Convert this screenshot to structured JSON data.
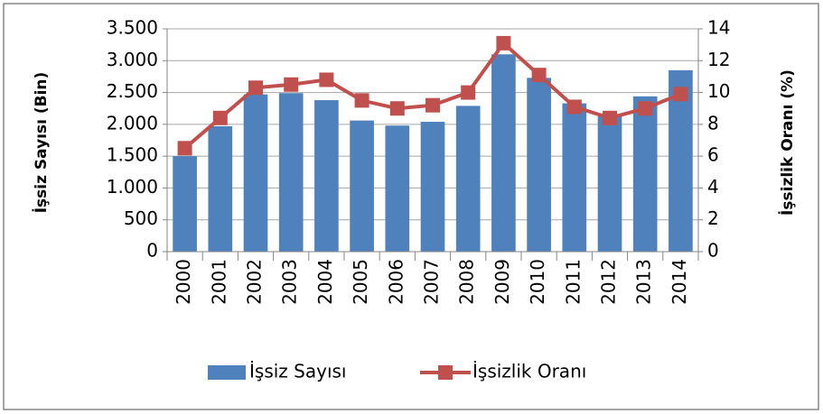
{
  "chart_data": {
    "type": "bar_line",
    "categories": [
      "2000",
      "2001",
      "2002",
      "2003",
      "2004",
      "2005",
      "2006",
      "2007",
      "2008",
      "2009",
      "2010",
      "2011",
      "2012",
      "2013",
      "2014"
    ],
    "series": [
      {
        "name": "İşsiz Sayısı",
        "type": "bar",
        "color": "#4f81bd",
        "values": [
          1500,
          1970,
          2470,
          2490,
          2380,
          2060,
          1980,
          2040,
          2290,
          3100,
          2730,
          2330,
          2130,
          2440,
          2850
        ]
      },
      {
        "name": "İşsizlik Oranı",
        "type": "line",
        "axis": "y2",
        "color": "#c0504d",
        "values": [
          6.5,
          8.4,
          10.3,
          10.5,
          10.8,
          9.5,
          9.0,
          9.2,
          10.0,
          13.1,
          11.1,
          9.1,
          8.4,
          9.0,
          9.9
        ]
      }
    ],
    "ylabel": "İşsiz Sayısı (Bin)",
    "y2label": "İşsizlik Oranı (%)",
    "ylim": [
      0,
      3500
    ],
    "yticks": [
      0,
      500,
      {
        "value": 1000,
        "label": "1.000"
      },
      {
        "value": 1500,
        "label": "1.500"
      },
      {
        "value": 2000,
        "label": "2.000"
      },
      {
        "value": 2500,
        "label": "2.500"
      },
      {
        "value": 3000,
        "label": "3.000"
      },
      {
        "value": 3500,
        "label": "3.500"
      }
    ],
    "y2lim": [
      0,
      14
    ],
    "y2ticks": [
      0,
      2,
      4,
      6,
      8,
      10,
      12,
      14
    ],
    "grid": true,
    "legend": "bottom"
  }
}
